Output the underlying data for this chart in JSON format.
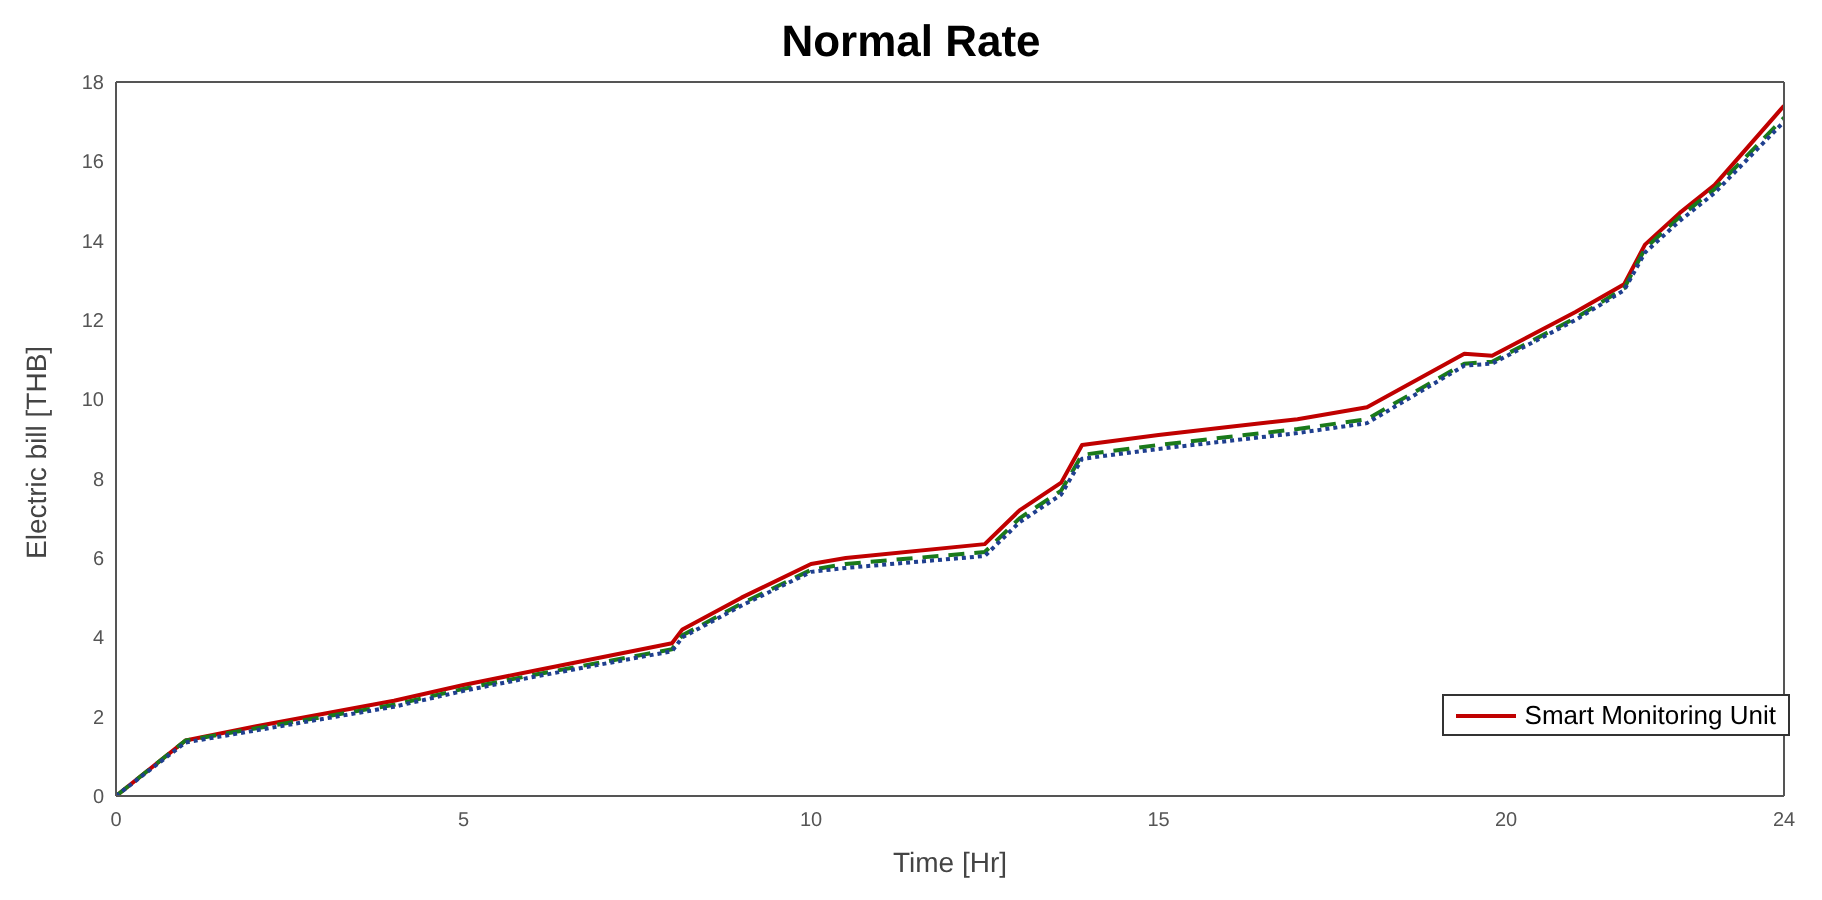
{
  "chart_data": {
    "type": "line",
    "title": "Normal Rate",
    "xlabel": "Time [Hr]",
    "ylabel": "Electric bill [THB]",
    "x": [
      0,
      1,
      2,
      4,
      5,
      6,
      8,
      8.15,
      9,
      10,
      10.5,
      12.5,
      13,
      13.6,
      13.9,
      15,
      16,
      17,
      18,
      19.4,
      19.8,
      21,
      21.7,
      22,
      22.5,
      23,
      24
    ],
    "series": [
      {
        "name": "Smart Monitoring Unit",
        "color": "#c00000",
        "line_style": "solid",
        "values": [
          0,
          1.4,
          1.75,
          2.4,
          2.8,
          3.15,
          3.85,
          4.2,
          5.0,
          5.85,
          6.0,
          6.35,
          7.2,
          7.9,
          8.85,
          9.1,
          9.3,
          9.5,
          9.8,
          11.15,
          11.1,
          12.2,
          12.9,
          13.9,
          14.7,
          15.4,
          17.4
        ]
      },
      {
        "color": "#1a7a1a",
        "line_style": "dashed",
        "values": [
          0,
          1.4,
          1.7,
          2.3,
          2.7,
          3.05,
          3.7,
          4.05,
          4.85,
          5.7,
          5.85,
          6.15,
          7.0,
          7.7,
          8.6,
          8.85,
          9.05,
          9.25,
          9.5,
          10.9,
          10.95,
          12.05,
          12.8,
          13.8,
          14.6,
          15.3,
          17.1
        ]
      },
      {
        "color": "#1f3f8f",
        "line_style": "dotted",
        "values": [
          0,
          1.35,
          1.65,
          2.25,
          2.65,
          3.0,
          3.65,
          4.0,
          4.8,
          5.65,
          5.75,
          6.05,
          6.9,
          7.6,
          8.5,
          8.75,
          8.95,
          9.15,
          9.4,
          10.85,
          10.9,
          12.0,
          12.75,
          13.7,
          14.5,
          15.2,
          17.0
        ]
      }
    ],
    "xlim": [
      0,
      24
    ],
    "xticks": [
      0,
      5,
      10,
      15,
      20,
      24
    ],
    "ylim": [
      0,
      18
    ],
    "yticks": [
      0,
      2,
      4,
      6,
      8,
      10,
      12,
      14,
      16,
      18
    ],
    "legend": "bottom right",
    "grid": false,
    "marker": "none"
  }
}
